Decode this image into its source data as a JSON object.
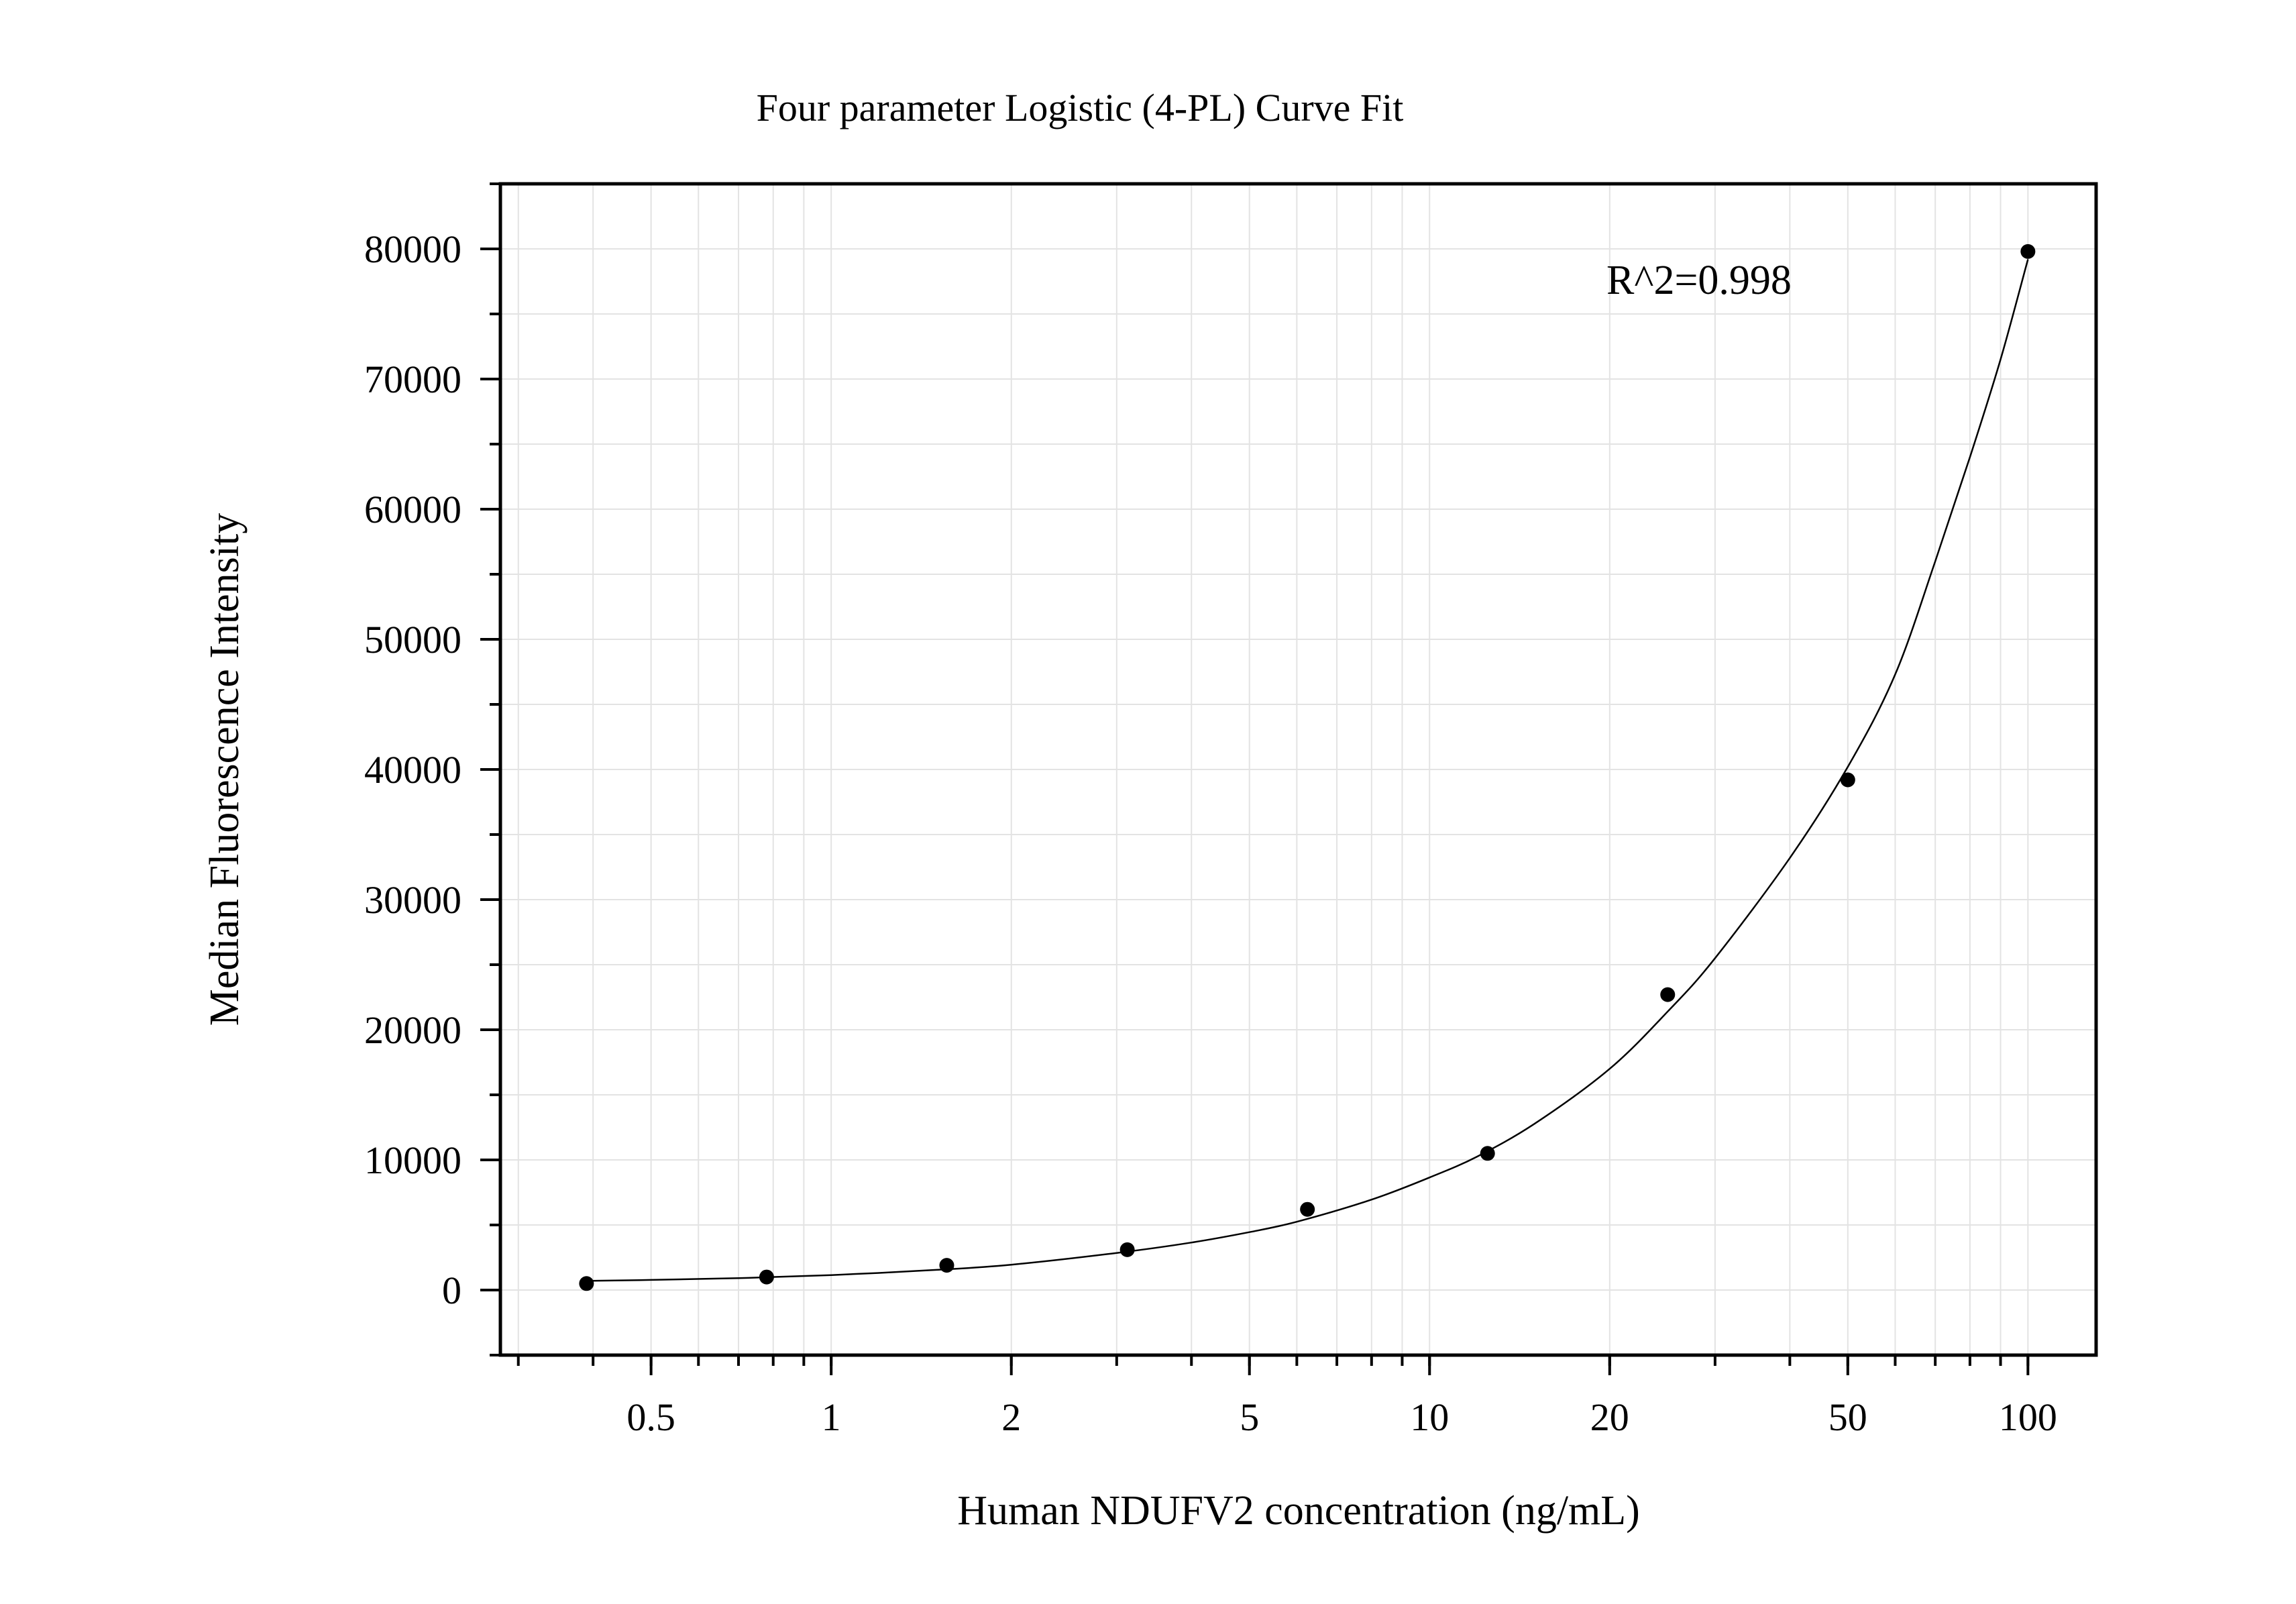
{
  "chart_data": {
    "type": "scatter",
    "title": "Four parameter Logistic (4-PL) Curve Fit",
    "xlabel": "Human NDUFV2 concentration (ng/mL)",
    "ylabel": "Median Fluorescence Intensity",
    "x_scale": "log",
    "xlim": [
      0.28,
      130
    ],
    "ylim": [
      -5000,
      85000
    ],
    "x_ticks": [
      0.5,
      1,
      2,
      5,
      10,
      20,
      50,
      100
    ],
    "x_tick_labels": [
      "0.5",
      "1",
      "2",
      "5",
      "10",
      "20",
      "50",
      "100"
    ],
    "y_ticks": [
      0,
      10000,
      20000,
      30000,
      40000,
      50000,
      60000,
      70000,
      80000
    ],
    "y_tick_labels": [
      "0",
      "10000",
      "20000",
      "30000",
      "40000",
      "50000",
      "60000",
      "70000",
      "80000"
    ],
    "grid": true,
    "annotation": "R^2=0.998",
    "points": {
      "x": [
        0.39,
        0.78,
        1.56,
        3.125,
        6.25,
        12.5,
        25,
        50,
        100
      ],
      "y": [
        500,
        1000,
        1900,
        3100,
        6200,
        10500,
        22700,
        39200,
        79800
      ]
    },
    "fit_curve": {
      "model": "4PL",
      "x": [
        0.39,
        0.5,
        0.7,
        1,
        1.5,
        2,
        3,
        4,
        5,
        6,
        8,
        10,
        12,
        15,
        20,
        25,
        30,
        40,
        50,
        60,
        70,
        80,
        90,
        100
      ],
      "y": [
        700,
        780,
        920,
        1150,
        1550,
        1950,
        2850,
        3650,
        4450,
        5250,
        6950,
        8650,
        10250,
        12800,
        17000,
        21400,
        25500,
        33200,
        40200,
        47300,
        56000,
        64000,
        71500,
        79200
      ]
    },
    "colors": {
      "points": "#000000",
      "curve": "#000000",
      "grid": "#e3e3e3",
      "frame": "#000000"
    }
  }
}
